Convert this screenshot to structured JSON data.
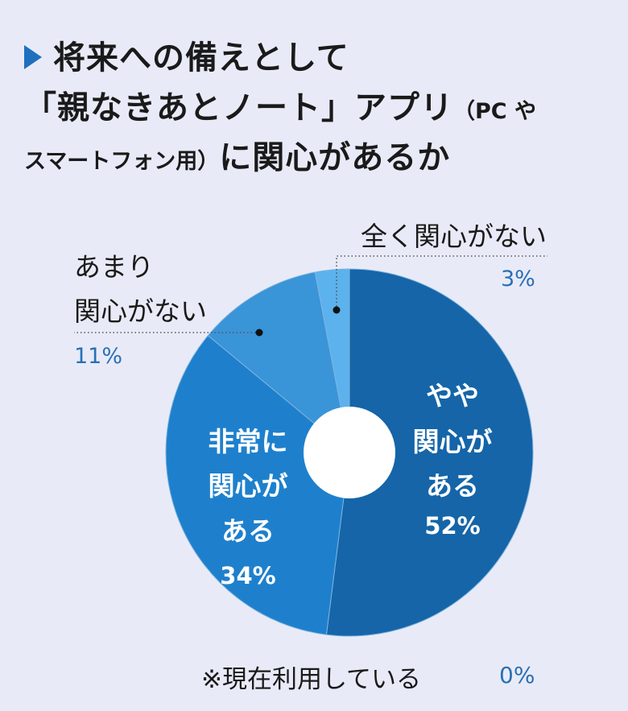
{
  "title": {
    "line1": "将来への備えとして",
    "line2_main": "「親なきあとノート」アプリ",
    "line2_small": "（PC や",
    "line3_small": "スマートフォン用）",
    "line3_main": "に関心があるか"
  },
  "chart_data": {
    "type": "pie",
    "donut": true,
    "slices": [
      {
        "label": "ややある関心がある",
        "label_lines": [
          "やや",
          "関心が",
          "ある"
        ],
        "value": 52,
        "value_label": "52%",
        "color": "#1565a8"
      },
      {
        "label": "非常に関心がある",
        "label_lines": [
          "非常に",
          "関心が",
          "ある"
        ],
        "value": 34,
        "value_label": "34%",
        "color": "#1e80cc"
      },
      {
        "label": "あまり関心がない",
        "label_lines": [
          "あまり",
          "関心がない"
        ],
        "value": 11,
        "value_label": "11%",
        "color": "#3a94d8"
      },
      {
        "label": "全く関心がない",
        "label_lines": [
          "全く関心がない"
        ],
        "value": 3,
        "value_label": "3%",
        "color": "#5cb2ec"
      }
    ],
    "footnote": {
      "label": "※現在利用している",
      "value_label": "0%",
      "value": 0
    }
  }
}
